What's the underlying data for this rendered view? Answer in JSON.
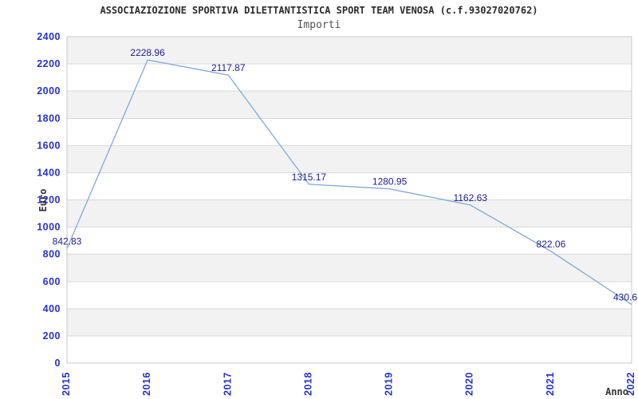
{
  "header": {
    "title": "ASSOCIAZIOZIONE SPORTIVA DILETTANTISTICA SPORT TEAM VENOSA (c.f.93027020762)",
    "subtitle": "Importi"
  },
  "axes": {
    "y_title": "Euro",
    "x_title": "Anno"
  },
  "chart_data": {
    "type": "line",
    "title": "ASSOCIAZIOZIONE SPORTIVA DILETTANTISTICA SPORT TEAM VENOSA (c.f.93027020762)",
    "subtitle": "Importi",
    "xlabel": "Anno",
    "ylabel": "Euro",
    "categories": [
      "2015",
      "2016",
      "2017",
      "2018",
      "2019",
      "2020",
      "2021",
      "2022"
    ],
    "values": [
      842.83,
      2228.96,
      2117.87,
      1315.17,
      1280.95,
      1162.63,
      822.06,
      430.6
    ],
    "point_labels": [
      "842.83",
      "2228.96",
      "2117.87",
      "1315.17",
      "1280.95",
      "1162.63",
      "822.06",
      "430.6"
    ],
    "ylim": [
      0,
      2400
    ],
    "ytick_step": 200,
    "yticks": [
      0,
      200,
      400,
      600,
      800,
      1000,
      1200,
      1400,
      1600,
      1800,
      2000,
      2200,
      2400
    ],
    "grid": "horizontal",
    "bands": "alternating",
    "legend": "none"
  },
  "colors": {
    "line": "#7fa8e0",
    "tick_label": "#2433cc",
    "point_label": "#1a1a94",
    "band_gray": "#f2f2f2",
    "band_white": "#ffffff",
    "gridline": "#d9d9d9",
    "border": "#c9c9c9",
    "title_text": "#2b2b2b",
    "subtitle_text": "#555555",
    "axis_title_text": "#333333"
  }
}
